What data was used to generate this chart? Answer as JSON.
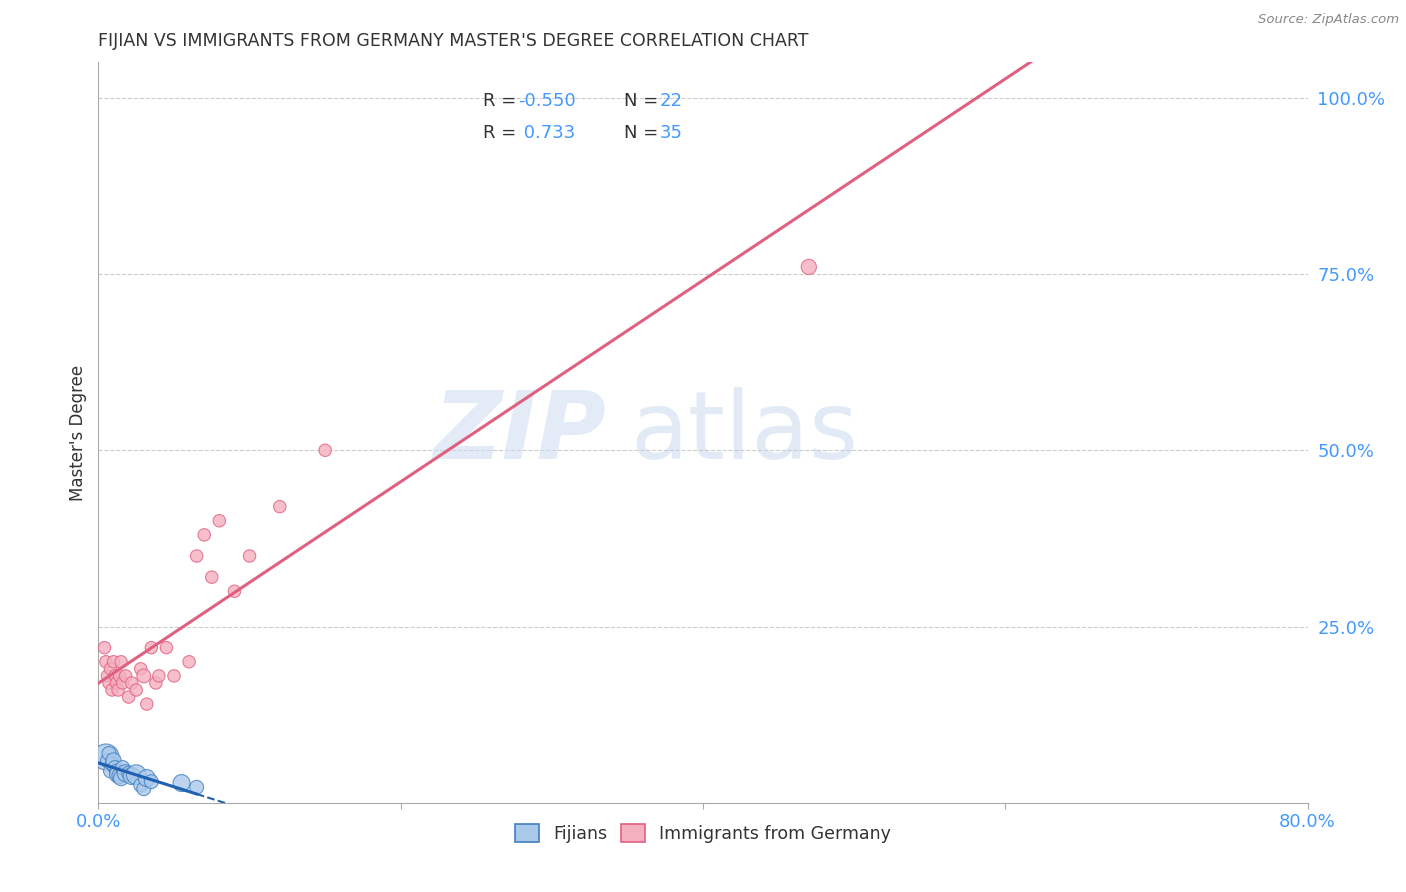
{
  "title": "FIJIAN VS IMMIGRANTS FROM GERMANY MASTER'S DEGREE CORRELATION CHART",
  "source": "Source: ZipAtlas.com",
  "ylabel": "Master's Degree",
  "right_yticks": [
    "100.0%",
    "75.0%",
    "50.0%",
    "25.0%"
  ],
  "right_ytick_vals": [
    1.0,
    0.75,
    0.5,
    0.25
  ],
  "color_fijian_fill": "#aac8ea",
  "color_fijian_edge": "#4080c0",
  "color_germany_fill": "#f5b0c0",
  "color_germany_edge": "#e06080",
  "color_line_fijian": "#2060b0",
  "color_line_germany": "#e06080",
  "color_axis_labels": "#4499ff",
  "background": "#ffffff",
  "watermark_zip": "ZIP",
  "watermark_atlas": "atlas",
  "fijian_x": [
    0.005,
    0.006,
    0.007,
    0.008,
    0.009,
    0.01,
    0.011,
    0.012,
    0.013,
    0.014,
    0.015,
    0.016,
    0.018,
    0.02,
    0.022,
    0.025,
    0.028,
    0.03,
    0.032,
    0.035,
    0.055,
    0.065
  ],
  "fijian_y": [
    0.065,
    0.06,
    0.07,
    0.045,
    0.055,
    0.06,
    0.05,
    0.045,
    0.04,
    0.038,
    0.035,
    0.05,
    0.042,
    0.042,
    0.038,
    0.04,
    0.025,
    0.02,
    0.035,
    0.03,
    0.028,
    0.022
  ],
  "fijian_size": [
    350,
    100,
    100,
    100,
    100,
    120,
    100,
    100,
    150,
    120,
    120,
    100,
    150,
    100,
    150,
    200,
    100,
    100,
    150,
    100,
    150,
    100
  ],
  "germany_x": [
    0.004,
    0.005,
    0.006,
    0.007,
    0.008,
    0.009,
    0.01,
    0.011,
    0.012,
    0.013,
    0.014,
    0.015,
    0.016,
    0.018,
    0.02,
    0.022,
    0.025,
    0.028,
    0.03,
    0.032,
    0.035,
    0.038,
    0.04,
    0.045,
    0.05,
    0.06,
    0.065,
    0.07,
    0.075,
    0.08,
    0.09,
    0.1,
    0.12,
    0.15,
    0.47
  ],
  "germany_y": [
    0.22,
    0.2,
    0.18,
    0.17,
    0.19,
    0.16,
    0.2,
    0.18,
    0.17,
    0.16,
    0.18,
    0.2,
    0.17,
    0.18,
    0.15,
    0.17,
    0.16,
    0.19,
    0.18,
    0.14,
    0.22,
    0.17,
    0.18,
    0.22,
    0.18,
    0.2,
    0.35,
    0.38,
    0.32,
    0.4,
    0.3,
    0.35,
    0.42,
    0.5,
    0.76
  ],
  "germany_size": [
    80,
    80,
    80,
    80,
    80,
    80,
    80,
    80,
    80,
    80,
    80,
    80,
    80,
    80,
    80,
    80,
    80,
    80,
    100,
    80,
    80,
    80,
    80,
    80,
    80,
    80,
    80,
    80,
    80,
    80,
    80,
    80,
    80,
    80,
    120
  ],
  "xlim": [
    0.0,
    0.8
  ],
  "ylim": [
    0.0,
    1.05
  ],
  "xtick_positions": [
    0.0,
    0.2,
    0.4,
    0.6,
    0.8
  ],
  "xtick_labels": [
    "0.0%",
    "",
    "",
    "",
    "80.0%"
  ]
}
